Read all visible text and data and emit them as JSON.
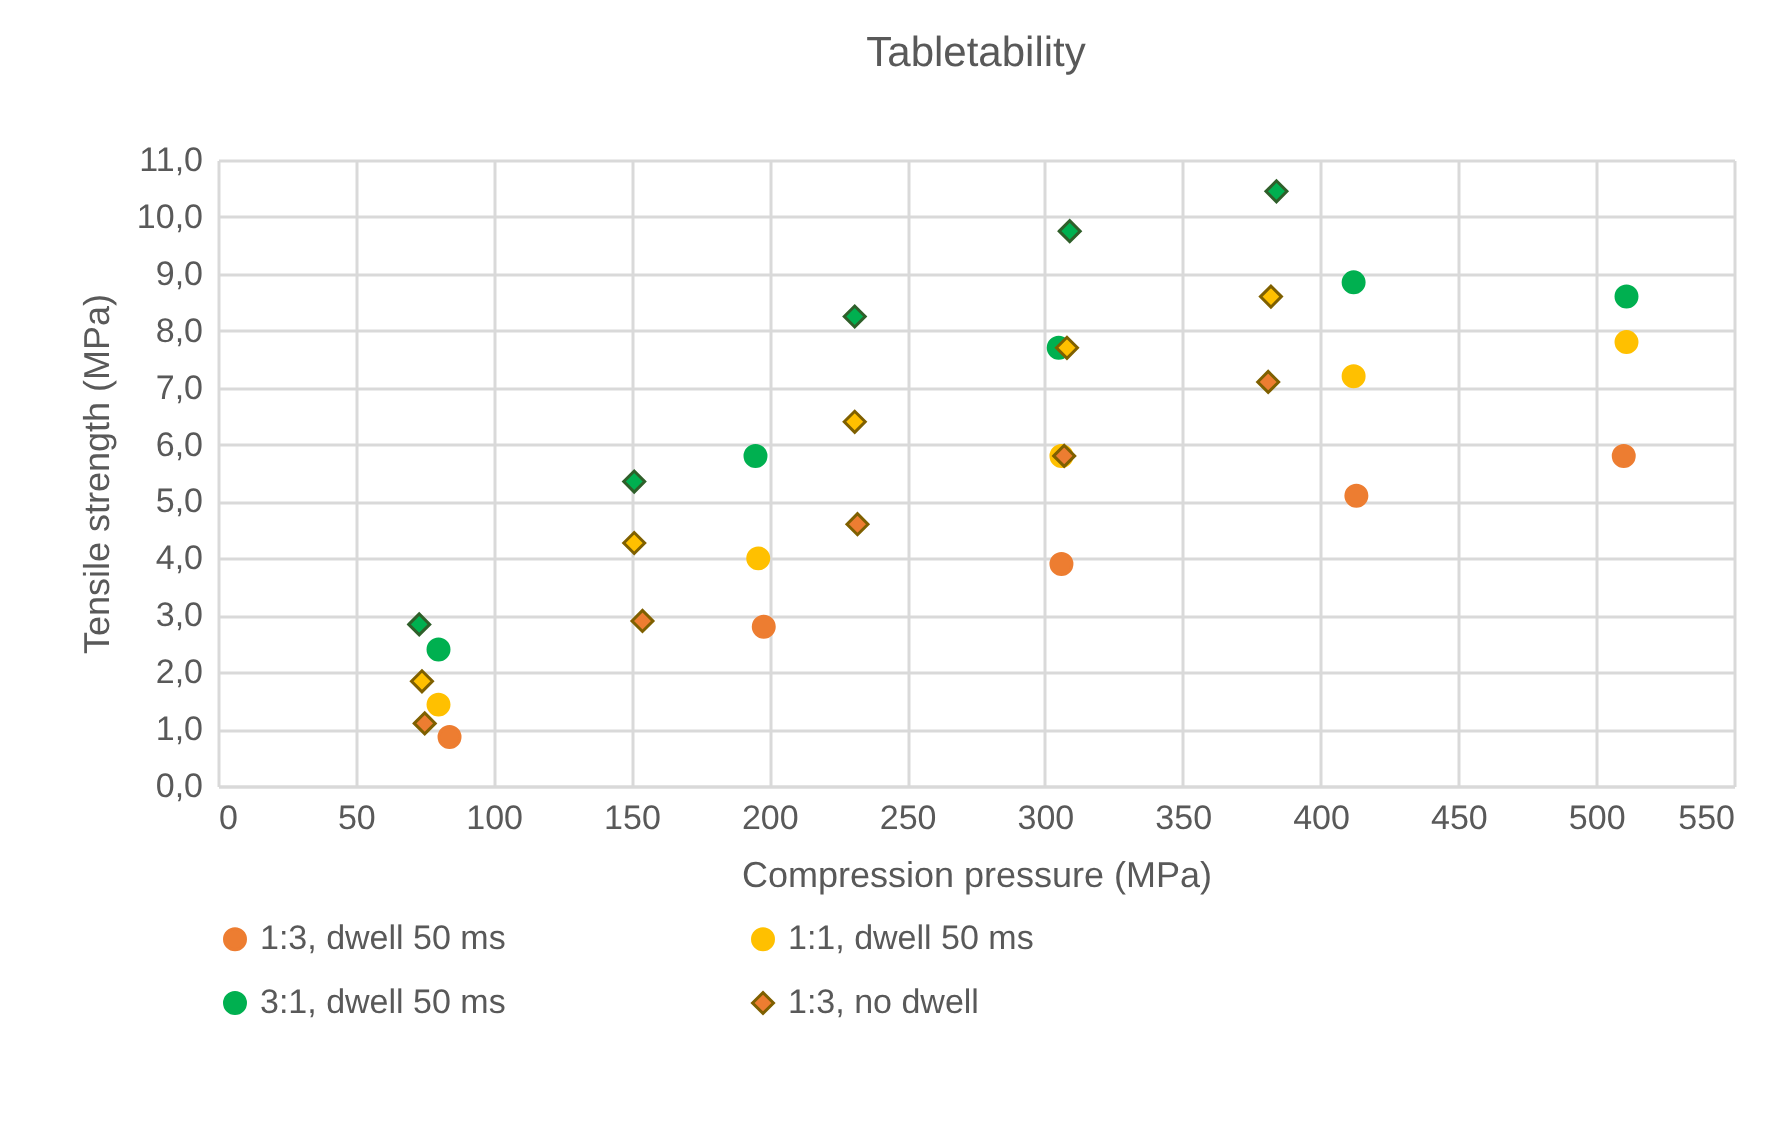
{
  "chart_data": {
    "type": "scatter",
    "title": "Tabletability",
    "xlabel": "Compression pressure (MPa)",
    "ylabel": "Tensile strength (MPa)",
    "xlim": [
      0,
      550
    ],
    "xticks": [
      0,
      50,
      100,
      150,
      200,
      250,
      300,
      350,
      400,
      450,
      500,
      550
    ],
    "ylim": [
      0,
      11
    ],
    "yticks": [
      {
        "value": 0,
        "label": "0,0"
      },
      {
        "value": 1,
        "label": "1,0"
      },
      {
        "value": 2,
        "label": "2,0"
      },
      {
        "value": 3,
        "label": "3,0"
      },
      {
        "value": 4,
        "label": "4,0"
      },
      {
        "value": 5,
        "label": "5,0"
      },
      {
        "value": 6,
        "label": "6,0"
      },
      {
        "value": 7,
        "label": "7,0"
      },
      {
        "value": 8,
        "label": "8,0"
      },
      {
        "value": 9,
        "label": "9,0"
      },
      {
        "value": 10,
        "label": "10,0"
      },
      {
        "value": 11,
        "label": "11,0"
      }
    ],
    "grid": true,
    "legend": "bottom",
    "series": [
      {
        "name": "1:3, dwell 50 ms",
        "color": "#ed7d31",
        "marker": "circle",
        "x": [
          84,
          198,
          306,
          413,
          510
        ],
        "values": [
          0.86,
          2.8,
          3.9,
          5.1,
          5.8
        ]
      },
      {
        "name": "1:1, dwell 50 ms",
        "color": "#ffc000",
        "marker": "circle",
        "x": [
          80,
          196,
          306,
          412,
          511
        ],
        "values": [
          1.43,
          4.0,
          5.8,
          7.2,
          7.8
        ]
      },
      {
        "name": "3:1, dwell 50 ms",
        "color": "#00b050",
        "marker": "circle",
        "x": [
          80,
          195,
          305,
          412,
          511
        ],
        "values": [
          2.4,
          5.8,
          7.7,
          8.85,
          8.6
        ]
      },
      {
        "name": "1:3, no dwell",
        "color": "#ed7d31",
        "marker": "diamond",
        "x": [
          75,
          154,
          232,
          307,
          381
        ],
        "values": [
          1.1,
          2.9,
          4.6,
          5.8,
          7.1
        ]
      },
      {
        "color": "#ffc000",
        "marker": "diamond",
        "x": [
          74,
          151,
          231,
          308,
          382
        ],
        "values": [
          1.84,
          4.27,
          6.4,
          7.7,
          8.6
        ]
      },
      {
        "color": "#00b050",
        "marker": "diamond",
        "x": [
          73,
          151,
          231,
          309,
          384
        ],
        "values": [
          2.84,
          5.35,
          8.25,
          9.75,
          10.45
        ]
      }
    ]
  }
}
